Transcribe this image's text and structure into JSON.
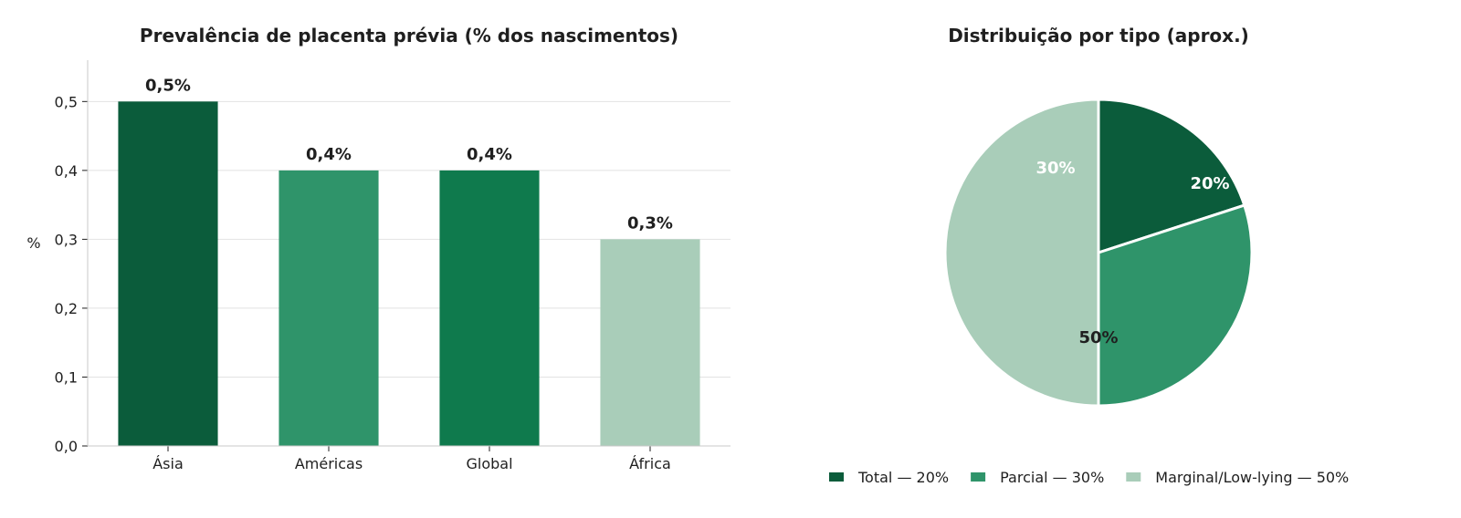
{
  "colors": {
    "dark_green": "#0b5c3b",
    "mid_green": "#2f946a",
    "green": "#0f7a4d",
    "light_green": "#a9cdb9",
    "grid": "#e2e2e2",
    "axis": "#c8c8c8",
    "text": "#1f1f1f"
  },
  "chart_data": [
    {
      "type": "bar",
      "title": "Prevalência de placenta prévia (% dos nascimentos)",
      "xlabel": "",
      "ylabel": "%",
      "categories": [
        "Ásia",
        "Américas",
        "Global",
        "África"
      ],
      "values": [
        0.5,
        0.4,
        0.4,
        0.3
      ],
      "data_labels": [
        "0,5%",
        "0,4%",
        "0,4%",
        "0,3%"
      ],
      "bar_colors": [
        "#0b5c3b",
        "#2f946a",
        "#0f7a4d",
        "#a9cdb9"
      ],
      "ylim": [
        0,
        0.56
      ],
      "yticks": [
        0,
        0.1,
        0.2,
        0.3,
        0.4,
        0.5
      ],
      "ytick_labels": [
        "0,0",
        "0,1",
        "0,2",
        "0,3",
        "0,4",
        "0,5"
      ],
      "grid": "horizontal"
    },
    {
      "type": "pie",
      "title": "Distribuição por tipo (aprox.)",
      "slices": [
        {
          "label": "Total",
          "value": 20,
          "data_label": "20%",
          "color": "#0b5c3b",
          "label_color": "#ffffff",
          "legend": "Total — 20%"
        },
        {
          "label": "Parcial",
          "value": 30,
          "data_label": "30%",
          "color": "#2f946a",
          "label_color": "#ffffff",
          "legend": "Parcial — 30%"
        },
        {
          "label": "Marginal/Low-lying",
          "value": 50,
          "data_label": "50%",
          "color": "#a9cdb9",
          "label_color": "#1f1f1f",
          "legend": "Marginal/Low-lying — 50%"
        }
      ],
      "start_angle": "12 o'clock",
      "direction": "clockwise",
      "legend_position": "bottom"
    }
  ]
}
